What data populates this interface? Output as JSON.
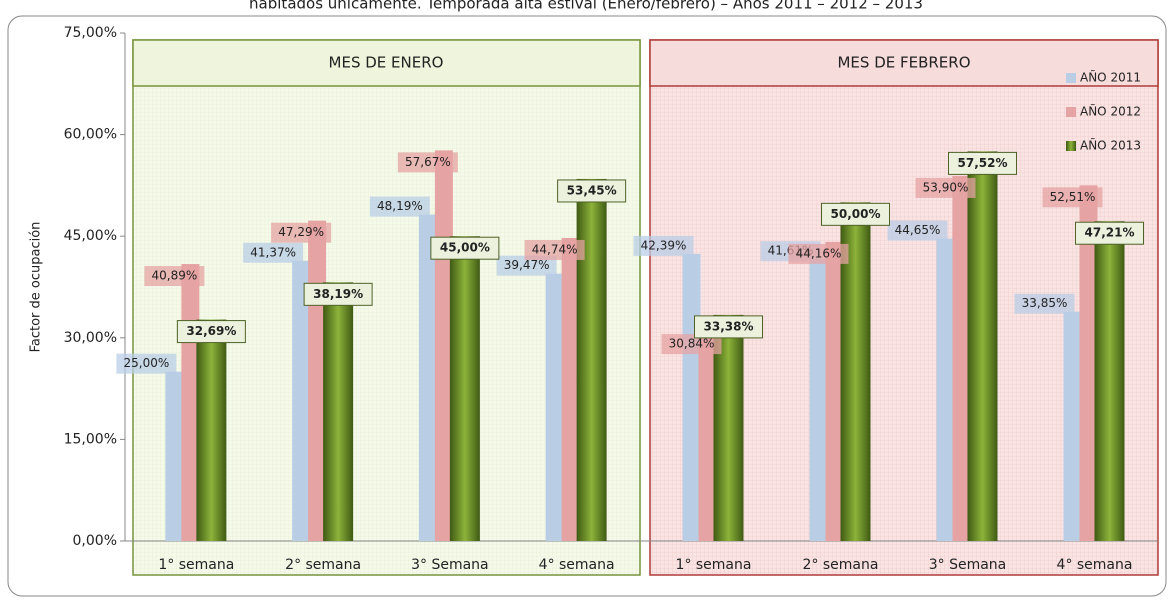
{
  "chart_data": {
    "type": "bar",
    "title": "habitados únicamente. Temporada alta estival (Enero/febrero) – Años 2011 – 2012 – 2013",
    "y_label": "Factor de ocupación",
    "groups": [
      "MES DE ENERO",
      "MES DE FEBRERO"
    ],
    "categories": [
      "1° semana",
      "2° semana",
      "3° Semana",
      "4° semana",
      "1° semana",
      "2° semana",
      "3° Semana",
      "4° semana"
    ],
    "series": [
      {
        "name": "AÑO 2011",
        "color": "#b9cde5",
        "values": [
          25.0,
          41.37,
          48.19,
          39.47,
          42.39,
          41.61,
          44.65,
          33.85
        ],
        "value_labels": [
          "25,00%",
          "41,37%",
          "48,19%",
          "39,47%",
          "42,39%",
          "41,61%",
          "44,65%",
          "33,85%"
        ]
      },
      {
        "name": "AÑO 2012",
        "color": "#e6a3a3",
        "values": [
          40.89,
          47.29,
          57.67,
          44.74,
          30.84,
          44.16,
          53.9,
          52.51
        ],
        "value_labels": [
          "40,89%",
          "47,29%",
          "57,67%",
          "44,74%",
          "30,84%",
          "44,16%",
          "53,90%",
          "52,51%"
        ]
      },
      {
        "name": "AÑO 2013",
        "color": "#6b8e23",
        "values": [
          32.69,
          38.19,
          45.0,
          53.45,
          33.38,
          50.0,
          57.52,
          47.21
        ],
        "value_labels": [
          "32,69%",
          "38,19%",
          "45,00%",
          "53,45%",
          "33,38%",
          "50,00%",
          "57,52%",
          "47,21%"
        ]
      }
    ],
    "ylim": [
      0,
      75
    ],
    "yticks": [
      {
        "value": 0,
        "label": "0,00%"
      },
      {
        "value": 15,
        "label": "15,00%"
      },
      {
        "value": 30,
        "label": "30,00%"
      },
      {
        "value": 45,
        "label": "45,00%"
      },
      {
        "value": 60,
        "label": "60,00%"
      },
      {
        "value": 75,
        "label": "75,00%"
      }
    ],
    "legend": "upper right"
  }
}
